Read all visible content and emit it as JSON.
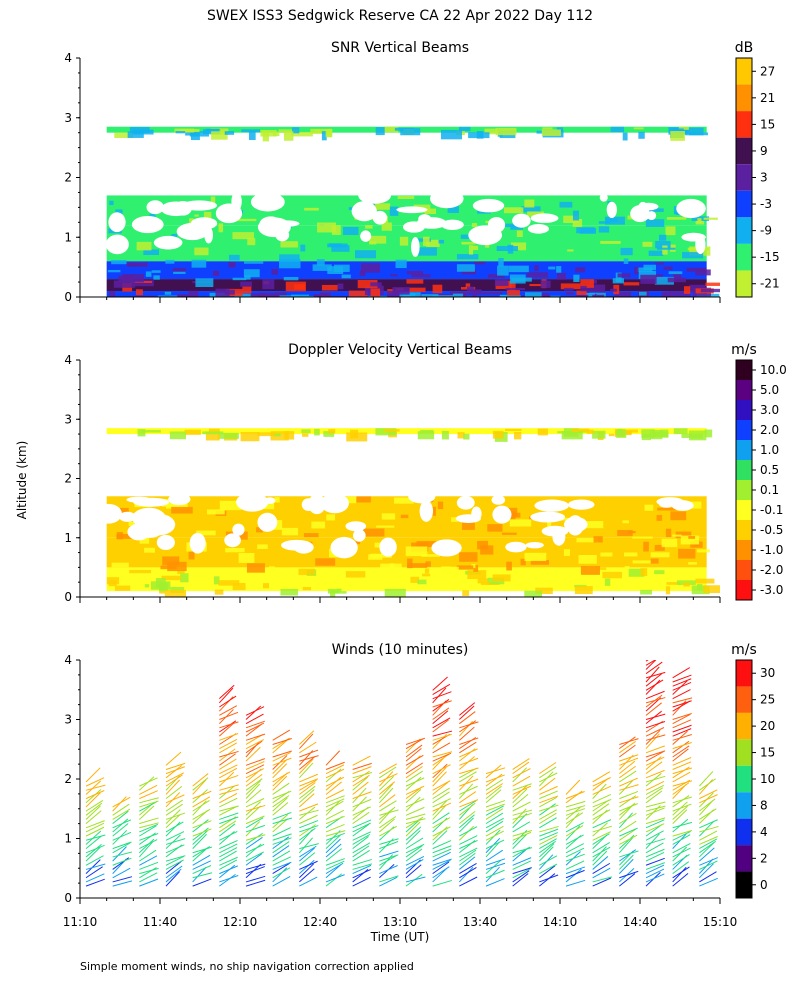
{
  "figure": {
    "title": "SWEX ISS3 Sedgwick Reserve CA  22 Apr 2022 Day 112",
    "ylabel": "Altitude (km)",
    "xlabel": "Time (UT)",
    "footnote": "Simple moment winds, no ship navigation correction applied"
  },
  "chart_data": [
    {
      "type": "heatmap",
      "title": "SNR Vertical Beams",
      "unit": "dB",
      "xlim": [
        "11:10",
        "15:10"
      ],
      "ylim": [
        0,
        4
      ],
      "yticks": [
        "0",
        "1",
        "2",
        "3",
        "4"
      ],
      "colorbar": {
        "labels": [
          "27",
          "21",
          "15",
          "9",
          "3",
          "-3",
          "-9",
          "-15",
          "-21"
        ],
        "colors": [
          "#ffc800",
          "#ff9000",
          "#ff3010",
          "#401050",
          "#5a20a0",
          "#1040ff",
          "#10b0f0",
          "#30f070",
          "#c0f030"
        ]
      },
      "rows": [
        {
          "band": [
            0.0,
            0.1
          ],
          "class": "-3"
        },
        {
          "band": [
            0.1,
            0.3
          ],
          "class": "9"
        },
        {
          "band": [
            0.3,
            0.6
          ],
          "class": "-3"
        },
        {
          "band": [
            0.6,
            1.2
          ],
          "class": "-15"
        },
        {
          "band": [
            1.2,
            1.7
          ],
          "class": "-15"
        },
        {
          "band": [
            2.75,
            2.85
          ],
          "class": "-15"
        }
      ]
    },
    {
      "type": "heatmap",
      "title": "Doppler Velocity Vertical Beams",
      "unit": "m/s",
      "xlim": [
        "11:10",
        "15:10"
      ],
      "ylim": [
        0,
        4
      ],
      "yticks": [
        "0",
        "1",
        "2",
        "3",
        "4"
      ],
      "colorbar": {
        "labels": [
          "10.0",
          "5.0",
          "3.0",
          "2.0",
          "1.0",
          "0.5",
          "0.1",
          "-0.1",
          "-0.5",
          "-1.0",
          "-2.0",
          "-3.0"
        ],
        "colors": [
          "#300020",
          "#5a0080",
          "#3010c0",
          "#1040ff",
          "#10a0f0",
          "#30e060",
          "#a0f030",
          "#ffff20",
          "#ffd000",
          "#ff9000",
          "#ff5010",
          "#ff1010"
        ]
      },
      "rows": [
        {
          "band": [
            0.1,
            0.5
          ],
          "class": "-0.1"
        },
        {
          "band": [
            0.5,
            1.0
          ],
          "class": "-0.5"
        },
        {
          "band": [
            1.0,
            1.7
          ],
          "class": "-0.5"
        },
        {
          "band": [
            2.75,
            2.85
          ],
          "class": "-0.1"
        }
      ]
    },
    {
      "type": "wind-barbs",
      "title": "Winds (10 minutes)",
      "unit": "m/s",
      "xlim": [
        "11:10",
        "15:10"
      ],
      "ylim": [
        0,
        4
      ],
      "yticks": [
        "0",
        "1",
        "2",
        "3",
        "4"
      ],
      "xticks": [
        "11:10",
        "11:40",
        "12:10",
        "12:40",
        "13:10",
        "13:40",
        "14:10",
        "14:40",
        "15:10"
      ],
      "colorbar": {
        "labels": [
          "30",
          "25",
          "20",
          "15",
          "10",
          "8",
          "4",
          "2",
          "0"
        ],
        "colors": [
          "#ff1010",
          "#ff6010",
          "#ffb000",
          "#a0e020",
          "#20e080",
          "#10a0f0",
          "#1030f0",
          "#500080",
          "#000000"
        ]
      },
      "profile_times": [
        "11:10",
        "11:20",
        "11:30",
        "11:40",
        "11:50",
        "12:00",
        "12:10",
        "12:20",
        "12:30",
        "12:40",
        "12:50",
        "13:00",
        "13:10",
        "13:20",
        "13:30",
        "13:40",
        "13:50",
        "14:00",
        "14:10",
        "14:20",
        "14:30",
        "14:40",
        "14:50",
        "15:00"
      ],
      "profile_tops_km": [
        2.0,
        1.6,
        1.9,
        2.3,
        1.9,
        3.4,
        3.1,
        2.7,
        2.6,
        2.3,
        2.3,
        2.1,
        2.6,
        3.5,
        3.1,
        2.1,
        2.2,
        2.1,
        1.8,
        2.0,
        2.6,
        4.1,
        3.7,
        1.9
      ]
    }
  ]
}
